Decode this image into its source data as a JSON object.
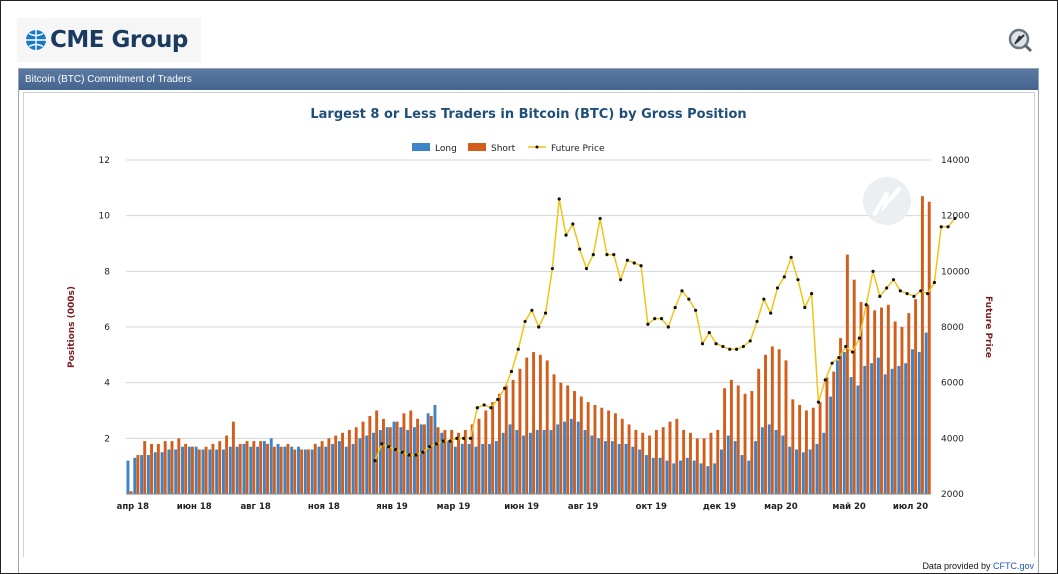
{
  "header": {
    "brand": "CME Group"
  },
  "panel": {
    "title": "Bitcoin (BTC) Commitment of Traders"
  },
  "footer": {
    "prefix": "Data provided by ",
    "link": "CFTC.gov"
  },
  "colors": {
    "long": "#3d84c6",
    "short": "#d35e1c",
    "price": "#f0c419",
    "title": "#1f4e79",
    "axis_title": "#7b1f1f"
  },
  "chart_data": {
    "type": "bar",
    "title": "Largest 8 or Less Traders in Bitcoin (BTC) by Gross Position",
    "ylabel": "Positions (000s)",
    "y2label": "Future Price",
    "ylim": [
      0,
      12
    ],
    "y2lim": [
      2000,
      14000
    ],
    "yticks": [
      "12",
      "10",
      "8",
      "6",
      "4",
      "2"
    ],
    "y2ticks": [
      "14000",
      "12000",
      "10000",
      "8000",
      "6000",
      "4000",
      "2000"
    ],
    "xticks": [
      "апр 18",
      "июн 18",
      "авг 18",
      "ноя 18",
      "янв 19",
      "мар 19",
      "июн 19",
      "авг 19",
      "окт 19",
      "дек 19",
      "мар 20",
      "май 20",
      "июл 20"
    ],
    "legend": [
      "Long",
      "Short",
      "Future Price"
    ],
    "legend_position": "top-center",
    "grid": true,
    "series": [
      {
        "name": "Long",
        "values": [
          1.2,
          1.3,
          1.4,
          1.4,
          1.5,
          1.5,
          1.6,
          1.6,
          1.7,
          1.7,
          1.7,
          1.6,
          1.6,
          1.6,
          1.6,
          1.7,
          1.7,
          1.8,
          1.7,
          1.7,
          1.9,
          2.0,
          1.8,
          1.7,
          1.7,
          1.7,
          1.6,
          1.6,
          1.7,
          1.7,
          1.8,
          1.9,
          1.7,
          1.8,
          2.0,
          2.1,
          2.2,
          2.3,
          2.4,
          2.6,
          2.4,
          2.3,
          2.4,
          2.5,
          2.9,
          3.2,
          2.2,
          1.9,
          1.7,
          1.8,
          1.8,
          1.7,
          1.8,
          1.8,
          1.9,
          2.2,
          2.5,
          2.3,
          2.1,
          2.2,
          2.3,
          2.3,
          2.3,
          2.5,
          2.6,
          2.7,
          2.6,
          2.3,
          2.1,
          2.0,
          1.9,
          1.9,
          1.8,
          1.8,
          1.7,
          1.6,
          1.4,
          1.3,
          1.3,
          1.2,
          1.1,
          1.2,
          1.3,
          1.2,
          1.1,
          1.0,
          1.1,
          1.6,
          2.1,
          1.9,
          1.4,
          1.2,
          1.9,
          2.4,
          2.5,
          2.3,
          2.1,
          1.7,
          1.6,
          1.5,
          1.6,
          1.8,
          2.2,
          3.5,
          4.8,
          5.1,
          4.2,
          3.9,
          4.6,
          4.7,
          4.9,
          4.3,
          4.5,
          4.6,
          4.7,
          5.2,
          5.1,
          5.8
        ]
      },
      {
        "name": "Short",
        "values": [
          0.1,
          1.4,
          1.9,
          1.8,
          1.8,
          1.9,
          1.9,
          2.0,
          1.8,
          1.7,
          1.6,
          1.7,
          1.8,
          1.9,
          2.1,
          2.6,
          1.8,
          1.9,
          1.9,
          1.9,
          1.8,
          1.7,
          1.7,
          1.8,
          1.6,
          1.6,
          1.6,
          1.8,
          1.9,
          2.0,
          2.1,
          2.2,
          2.3,
          2.4,
          2.6,
          2.8,
          3.0,
          2.7,
          2.4,
          2.6,
          2.9,
          3.0,
          2.7,
          2.5,
          2.8,
          2.4,
          2.3,
          2.3,
          2.2,
          2.3,
          2.5,
          2.7,
          3.0,
          3.3,
          3.6,
          3.9,
          4.1,
          4.5,
          4.9,
          5.1,
          5.0,
          4.8,
          4.3,
          4.0,
          3.9,
          3.7,
          3.5,
          3.3,
          3.2,
          3.1,
          3.0,
          2.9,
          2.7,
          2.5,
          2.3,
          2.2,
          2.1,
          2.3,
          2.4,
          2.6,
          2.7,
          2.3,
          2.2,
          2.0,
          2.0,
          2.2,
          2.3,
          3.8,
          4.1,
          3.9,
          3.6,
          3.7,
          4.5,
          5.0,
          5.3,
          5.2,
          4.8,
          3.4,
          3.2,
          3.0,
          3.1,
          3.3,
          4.2,
          4.4,
          5.6,
          8.6,
          7.7,
          6.9,
          6.8,
          6.6,
          6.7,
          6.8,
          6.2,
          6.0,
          6.5,
          7.0,
          10.7,
          10.5
        ]
      },
      {
        "name": "Future Price",
        "points": [
          [
            36,
            3200
          ],
          [
            37,
            3800
          ],
          [
            38,
            3700
          ],
          [
            39,
            3600
          ],
          [
            40,
            3500
          ],
          [
            41,
            3400
          ],
          [
            42,
            3400
          ],
          [
            43,
            3500
          ],
          [
            44,
            3700
          ],
          [
            45,
            3800
          ],
          [
            46,
            3900
          ],
          [
            47,
            3900
          ],
          [
            48,
            4000
          ],
          [
            49,
            4000
          ],
          [
            50,
            4000
          ],
          [
            51,
            5100
          ],
          [
            52,
            5200
          ],
          [
            53,
            5100
          ],
          [
            54,
            5400
          ],
          [
            55,
            5800
          ],
          [
            56,
            6400
          ],
          [
            57,
            7200
          ],
          [
            58,
            8200
          ],
          [
            59,
            8600
          ],
          [
            60,
            8000
          ],
          [
            61,
            8500
          ],
          [
            62,
            10100
          ],
          [
            63,
            12600
          ],
          [
            64,
            11300
          ],
          [
            65,
            11700
          ],
          [
            66,
            10800
          ],
          [
            67,
            10100
          ],
          [
            68,
            10600
          ],
          [
            69,
            11900
          ],
          [
            70,
            10600
          ],
          [
            71,
            10600
          ],
          [
            72,
            9700
          ],
          [
            73,
            10400
          ],
          [
            74,
            10300
          ],
          [
            75,
            10200
          ],
          [
            76,
            8100
          ],
          [
            77,
            8300
          ],
          [
            78,
            8300
          ],
          [
            79,
            8000
          ],
          [
            80,
            8700
          ],
          [
            81,
            9300
          ],
          [
            82,
            9000
          ],
          [
            83,
            8600
          ],
          [
            84,
            7400
          ],
          [
            85,
            7800
          ],
          [
            86,
            7400
          ],
          [
            87,
            7300
          ],
          [
            88,
            7200
          ],
          [
            89,
            7200
          ],
          [
            90,
            7300
          ],
          [
            91,
            7500
          ],
          [
            92,
            8200
          ],
          [
            93,
            9000
          ],
          [
            94,
            8500
          ],
          [
            95,
            9400
          ],
          [
            96,
            9800
          ],
          [
            97,
            10500
          ],
          [
            98,
            9700
          ],
          [
            99,
            8700
          ],
          [
            100,
            9200
          ],
          [
            101,
            5300
          ],
          [
            102,
            6100
          ],
          [
            103,
            6700
          ],
          [
            104,
            6900
          ],
          [
            105,
            7300
          ],
          [
            106,
            7100
          ],
          [
            107,
            7600
          ],
          [
            108,
            8800
          ],
          [
            109,
            10000
          ],
          [
            110,
            9100
          ],
          [
            111,
            9400
          ],
          [
            112,
            9700
          ],
          [
            113,
            9300
          ],
          [
            114,
            9200
          ],
          [
            115,
            9100
          ],
          [
            116,
            9300
          ],
          [
            117,
            9200
          ],
          [
            118,
            9600
          ],
          [
            119,
            11600
          ],
          [
            120,
            11600
          ],
          [
            121,
            11900
          ]
        ]
      }
    ]
  }
}
